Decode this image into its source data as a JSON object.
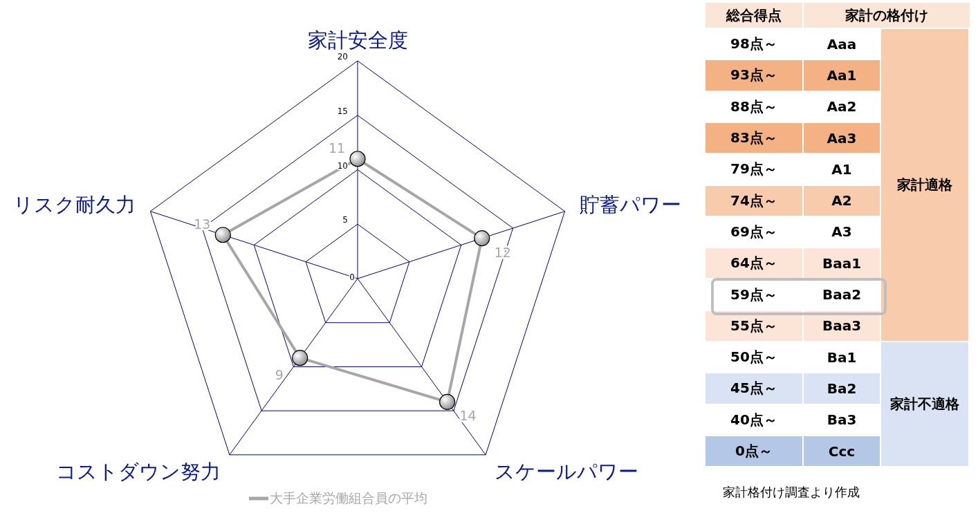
{
  "chart_data": [
    {
      "type": "radar",
      "categories": [
        "家計安全度",
        "貯蓄パワー",
        "スケールパワー",
        "コストダウン努力",
        "リスク耐久力"
      ],
      "ylim": [
        0,
        20
      ],
      "yticks": [
        0,
        5,
        10,
        15,
        20
      ],
      "data_labels": true,
      "marker": "circle",
      "legend": "bottom",
      "grid": true,
      "series": [
        {
          "name": "大手企業労働組合員の平均",
          "color": "#a6a6a6",
          "values": [
            11,
            12,
            14,
            9,
            13
          ]
        }
      ]
    },
    {
      "type": "other",
      "categories": [
        "98点～",
        "93点～",
        "88点～",
        "83点～",
        "79点～",
        "74点～",
        "69点～",
        "64点～",
        "59点～",
        "55点～",
        "50点～",
        "45点～",
        "40点～",
        "0点～"
      ],
      "colors": [
        "#ffffff",
        "#f4b183",
        "#ffffff",
        "#f4b183",
        "#ffffff",
        "#f8cbad",
        "#ffffff",
        "#fce4d6",
        "#ffffff",
        "#fce4d6",
        "#ffffff",
        "#dae3f3",
        "#ffffff",
        "#b4c7e7"
      ],
      "annotations": [
        "総合得点",
        "家計の格付け",
        "Aaa",
        "Aa1",
        "Aa2",
        "Aa3",
        "A1",
        "A2",
        "A3",
        "Baa1",
        "Baa2",
        "Baa3",
        "Ba1",
        "Ba2",
        "Ba3",
        "Ccc",
        "家計適格",
        "家計不適格",
        "家計格付け調査より作成"
      ]
    }
  ]
}
